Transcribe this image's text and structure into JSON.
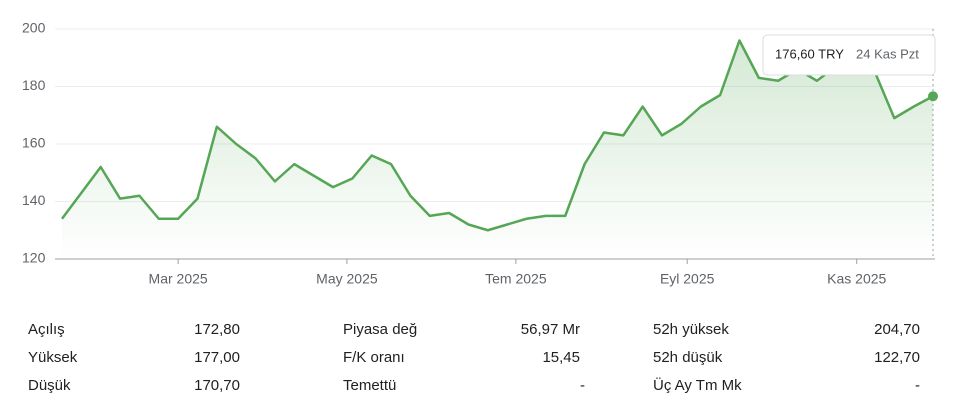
{
  "chart_data": {
    "type": "line",
    "categories": [
      null,
      null,
      null,
      null,
      null,
      null,
      null,
      null,
      null,
      null,
      null,
      null,
      null,
      null,
      null,
      null,
      null,
      null,
      null,
      null,
      null,
      null,
      null,
      null,
      null,
      null,
      null,
      null,
      null,
      null,
      null,
      null,
      null,
      null,
      null,
      null,
      null,
      null,
      null,
      null,
      null,
      null,
      null,
      null,
      null,
      null
    ],
    "series": [
      {
        "color": "#55a655",
        "values": [
          134,
          143,
          152,
          141,
          142,
          134,
          134,
          141,
          166,
          160,
          155,
          147,
          153,
          149,
          145,
          148,
          156,
          153,
          142,
          135,
          136,
          132,
          130,
          132,
          134,
          135,
          135,
          153,
          164,
          163,
          173,
          163,
          167,
          173,
          177,
          196,
          183,
          182,
          186,
          182,
          187,
          186,
          185,
          169,
          173,
          176.6
        ]
      }
    ],
    "ylim": [
      120,
      200
    ],
    "yticks": [
      120,
      140,
      160,
      180,
      200
    ],
    "xlim": [
      0,
      45
    ],
    "xticks": [
      {
        "value": 6,
        "label": "Mar 2025"
      },
      {
        "value": 14.72,
        "label": "May 2025"
      },
      {
        "value": 23.45,
        "label": "Tem 2025"
      },
      {
        "value": 32.3,
        "label": "Eyl 2025"
      },
      {
        "value": 41.06,
        "label": "Kas 2025"
      }
    ],
    "grid": true,
    "tooltip": {
      "label": "176,60 TRY",
      "date": "24 Kas Pzt"
    }
  },
  "stats": [
    {
      "label": "Açılış",
      "value": "172,80"
    },
    {
      "label": "Piyasa değ",
      "value": "56,97 Mr"
    },
    {
      "label": "52h yüksek",
      "value": "204,70"
    },
    {
      "label": "Yüksek",
      "value": "177,00"
    },
    {
      "label": "F/K oranı",
      "value": "15,45"
    },
    {
      "label": "52h düşük",
      "value": "122,70"
    },
    {
      "label": "Düşük",
      "value": "170,70"
    },
    {
      "label": "Temettü",
      "value": "-"
    },
    {
      "label": "Üç Ay Tm Mk",
      "value": "-"
    }
  ]
}
